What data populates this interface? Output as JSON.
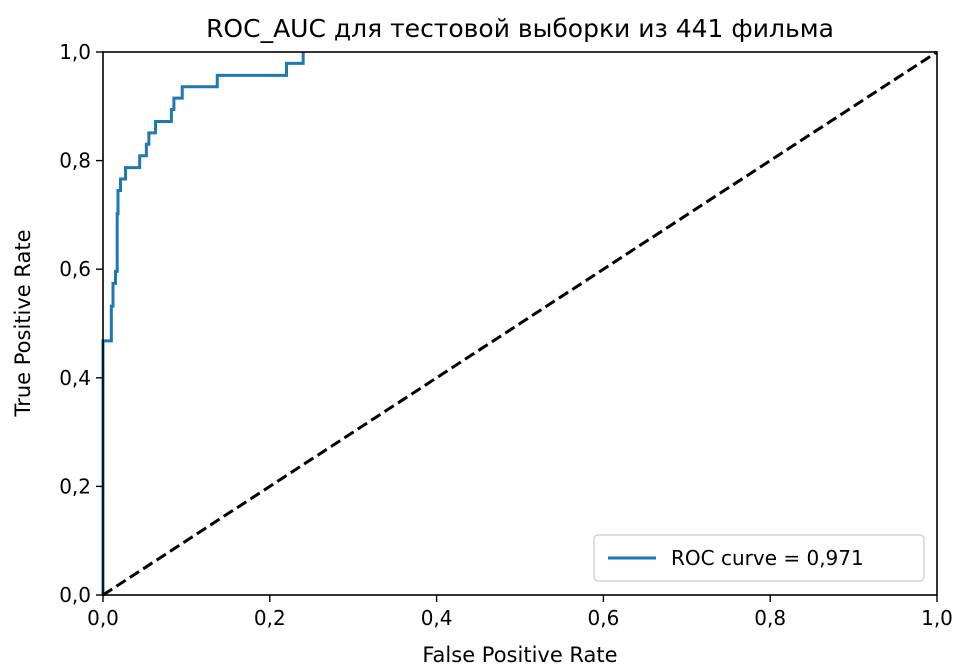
{
  "chart_data": {
    "type": "line",
    "title": "ROC_AUC для тестовой  выборки из 441 фильма",
    "xlabel": "False Positive Rate",
    "ylabel": "True Positive Rate",
    "xlim": [
      0,
      1
    ],
    "ylim": [
      0,
      1
    ],
    "xticks": [
      0,
      0.2,
      0.4,
      0.6,
      0.8,
      1.0
    ],
    "yticks": [
      0,
      0.2,
      0.4,
      0.6,
      0.8,
      1.0
    ],
    "xtick_labels": [
      "0,0",
      "0,2",
      "0,4",
      "0,6",
      "0,8",
      "1,0"
    ],
    "ytick_labels": [
      "0,0",
      "0,2",
      "0,4",
      "0,6",
      "0,8",
      "1,0"
    ],
    "grid": false,
    "legend": {
      "location": "lower-right"
    },
    "series": [
      {
        "name": "ROC curve = 0,971",
        "color": "#1f77b4",
        "style": "solid",
        "x": [
          0,
          0,
          0,
          0,
          0.003,
          0.003,
          0.01,
          0.01,
          0.012,
          0.012,
          0.015,
          0.015,
          0.017,
          0.017,
          0.018,
          0.018,
          0.021,
          0.021,
          0.024,
          0.024,
          0.027,
          0.027,
          0.044,
          0.044,
          0.052,
          0.052,
          0.055,
          0.055,
          0.063,
          0.063,
          0.082,
          0.082,
          0.085,
          0.085,
          0.095,
          0.095,
          0.137,
          0.137,
          0.22,
          0.22,
          0.24,
          0.24
        ],
        "y": [
          0,
          0.234,
          0.234,
          0.468,
          0.468,
          0.468,
          0.468,
          0.532,
          0.532,
          0.574,
          0.574,
          0.596,
          0.596,
          0.702,
          0.702,
          0.745,
          0.745,
          0.766,
          0.766,
          0.766,
          0.766,
          0.787,
          0.787,
          0.809,
          0.809,
          0.83,
          0.83,
          0.851,
          0.851,
          0.872,
          0.872,
          0.894,
          0.894,
          0.915,
          0.915,
          0.936,
          0.936,
          0.957,
          0.957,
          0.979,
          0.979,
          1.0
        ]
      },
      {
        "name": "",
        "color": "#000000",
        "style": "dashed",
        "x": [
          0,
          1
        ],
        "y": [
          0,
          1
        ]
      }
    ]
  }
}
